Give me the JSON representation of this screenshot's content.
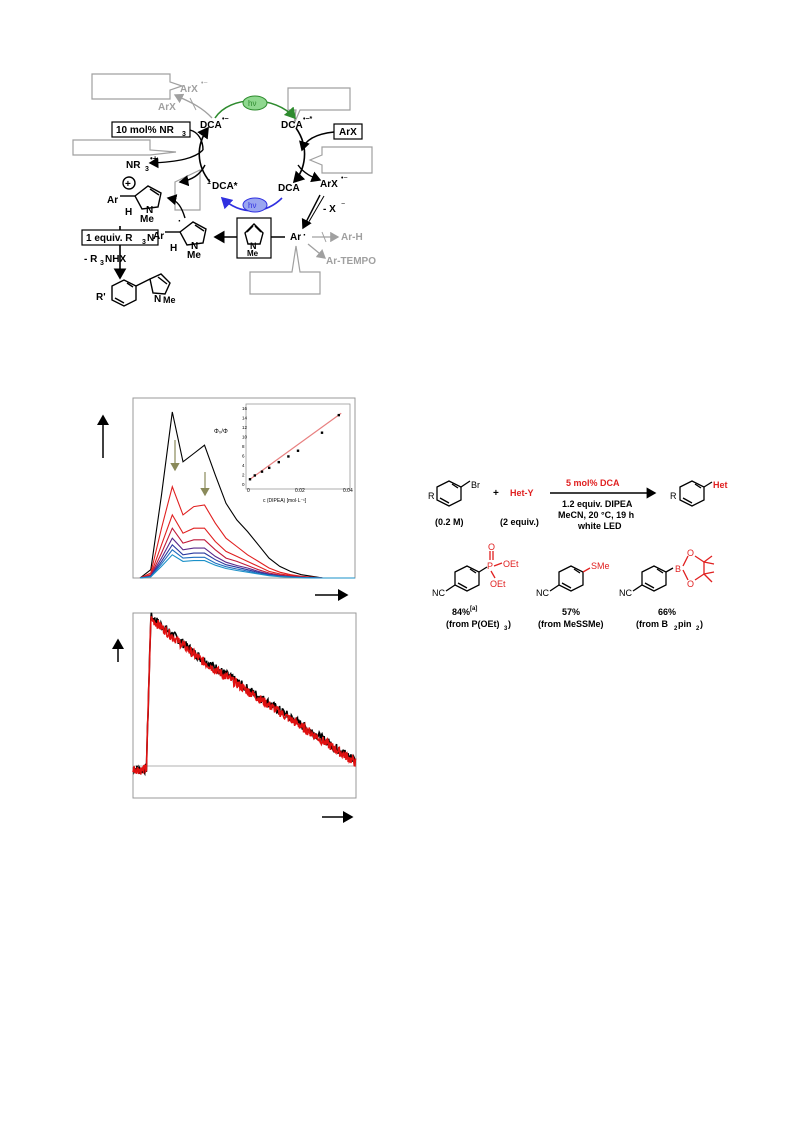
{
  "scheme_cycle": {
    "dca_radical_anion_left": "DCA",
    "dca_radical_anion_excited": "DCA",
    "dca_singlet_excited": "DCA*",
    "dca_ground": "DCA",
    "hv_top": "hν",
    "hv_bottom": "hν",
    "singlet_prefix": "1",
    "aryl_halide_box": "ArX",
    "aryl_halide_radical_anion": "ArX",
    "halide_loss": "- X",
    "aryl_radical": "Ar",
    "aryl_h": "Ar-H",
    "aryl_tempo": "Ar-TEMPO",
    "back_arx_anion": "ArX",
    "back_arx": "ArX",
    "amine_catalyst_box": "10 mol% NR",
    "amine_radical_cation": "NR",
    "base_box": "1 equiv. R",
    "base_box_suffix": "N",
    "ammonium_salt": "- R",
    "ammonium_salt_suffix": "NHX",
    "intermediate_cation_ar": "Ar",
    "intermediate_cation_h": "H",
    "intermediate_cation_n": "N",
    "intermediate_cation_me": "Me",
    "intermediate_radical_ar": "Ar",
    "intermediate_radical_h": "H",
    "intermediate_radical_n": "N",
    "intermediate_radical_me": "Me",
    "pyrrole_n": "N",
    "pyrrole_me": "Me",
    "product_r": "R'",
    "product_n": "N",
    "product_me": "Me",
    "plus_charge": "+"
  },
  "fluorescence_chart": {
    "inset_ylabel": "Φ₀/Φ",
    "inset_xlabel": "c (DIPEA) [mol·L⁻¹]",
    "inset_xticks": [
      "0",
      "0.02",
      "0.04"
    ],
    "inset_yticks": [
      "0",
      "2",
      "4",
      "6",
      "8",
      "10",
      "12",
      "14",
      "16"
    ]
  },
  "chart_data": [
    {
      "type": "line",
      "title": "",
      "xlabel": "",
      "ylabel": "",
      "x": [
        0,
        5,
        10,
        15,
        20,
        25,
        30,
        35,
        40,
        45,
        50,
        55,
        60,
        65,
        70,
        75,
        80,
        85,
        90,
        95,
        100
      ],
      "series": [
        {
          "values": [
            0.0,
            0.05,
            0.5,
            1.0,
            0.7,
            0.75,
            0.8,
            0.62,
            0.45,
            0.35,
            0.28,
            0.2,
            0.12,
            0.07,
            0.04,
            0.02,
            0.01,
            0.0,
            0.0,
            0.0,
            0.0
          ]
        },
        {
          "values": [
            0.0,
            0.03,
            0.3,
            0.55,
            0.38,
            0.43,
            0.44,
            0.33,
            0.24,
            0.19,
            0.14,
            0.1,
            0.06,
            0.035,
            0.02,
            0.01,
            0.005,
            0.0,
            0.0,
            0.0,
            0.0
          ]
        },
        {
          "values": [
            0.0,
            0.02,
            0.2,
            0.38,
            0.27,
            0.3,
            0.3,
            0.22,
            0.16,
            0.13,
            0.1,
            0.07,
            0.04,
            0.025,
            0.015,
            0.008,
            0.004,
            0.0,
            0.0,
            0.0,
            0.0
          ]
        },
        {
          "values": [
            0.0,
            0.015,
            0.15,
            0.3,
            0.21,
            0.23,
            0.23,
            0.17,
            0.12,
            0.1,
            0.075,
            0.05,
            0.03,
            0.018,
            0.01,
            0.005,
            0.003,
            0.0,
            0.0,
            0.0,
            0.0
          ]
        },
        {
          "values": [
            0.0,
            0.012,
            0.12,
            0.24,
            0.17,
            0.18,
            0.18,
            0.13,
            0.095,
            0.075,
            0.06,
            0.04,
            0.024,
            0.014,
            0.008,
            0.004,
            0.002,
            0.0,
            0.0,
            0.0,
            0.0
          ]
        },
        {
          "values": [
            0.0,
            0.01,
            0.1,
            0.2,
            0.14,
            0.15,
            0.15,
            0.11,
            0.08,
            0.065,
            0.05,
            0.034,
            0.02,
            0.012,
            0.007,
            0.003,
            0.002,
            0.0,
            0.0,
            0.0,
            0.0
          ]
        },
        {
          "values": [
            0.0,
            0.008,
            0.085,
            0.17,
            0.12,
            0.125,
            0.125,
            0.09,
            0.068,
            0.054,
            0.042,
            0.028,
            0.017,
            0.01,
            0.006,
            0.003,
            0.001,
            0.0,
            0.0,
            0.0,
            0.0
          ]
        },
        {
          "values": [
            0.0,
            0.007,
            0.07,
            0.14,
            0.1,
            0.105,
            0.105,
            0.077,
            0.057,
            0.045,
            0.035,
            0.024,
            0.014,
            0.008,
            0.005,
            0.002,
            0.001,
            0.0,
            0.0,
            0.0,
            0.0
          ]
        }
      ],
      "colors": [
        "#000000",
        "#e02020",
        "#e02020",
        "#c01a3a",
        "#5a2a8a",
        "#2a3aa0",
        "#1f6fc0",
        "#1a90c8"
      ]
    },
    {
      "type": "scatter",
      "title": "",
      "xlabel": "c (DIPEA) [mol·L⁻¹]",
      "ylabel": "Φ₀/Φ",
      "x": [
        0.0,
        0.002,
        0.005,
        0.008,
        0.012,
        0.016,
        0.02,
        0.03,
        0.037
      ],
      "y": [
        1.0,
        1.8,
        2.6,
        3.4,
        4.6,
        5.8,
        7.0,
        10.8,
        14.5
      ],
      "xlim": [
        0,
        0.04
      ],
      "ylim": [
        0,
        16
      ]
    },
    {
      "type": "line",
      "title": "",
      "xlabel": "",
      "ylabel": "",
      "x": [
        0,
        4,
        6,
        8,
        10,
        20,
        30,
        40,
        50,
        60,
        70,
        80,
        90,
        100
      ],
      "series": [
        {
          "values": [
            0.16,
            0.15,
            0.16,
            0.98,
            0.96,
            0.86,
            0.76,
            0.68,
            0.6,
            0.52,
            0.44,
            0.36,
            0.28,
            0.2
          ]
        },
        {
          "values": [
            0.16,
            0.15,
            0.16,
            0.97,
            0.95,
            0.85,
            0.75,
            0.67,
            0.59,
            0.51,
            0.43,
            0.35,
            0.27,
            0.19
          ]
        }
      ],
      "colors": [
        "#000000",
        "#e01010"
      ]
    }
  ],
  "reaction": {
    "substrate_br": "Br",
    "substrate_r": "R",
    "plus": "+",
    "reagent": "Het-Y",
    "catalyst": "5 mol% DCA",
    "conditions_1": "1.2 equiv. DIPEA",
    "conditions_2": "MeCN, 20 °C, 19 h",
    "conditions_3": "white LED",
    "product_r": "R",
    "product_het": "Het",
    "substrate_conc": "(0.2 M)",
    "reagent_equiv": "(2 equiv.)"
  },
  "products": [
    {
      "yield": "84%",
      "note": "[a]",
      "source": "(from P(OEt)",
      "source_sub": "3",
      "source_end": ")",
      "p": "P",
      "o": "O",
      "oet1": "OEt",
      "oet2": "OEt",
      "nc": "NC"
    },
    {
      "yield": "57%",
      "source": "(from MeSSMe)",
      "group": "SMe",
      "nc": "NC"
    },
    {
      "yield": "66%",
      "source": "(from B",
      "source_sub1": "2",
      "source_mid": "pin",
      "source_sub2": "2",
      "source_end": ")",
      "b": "B",
      "o1": "O",
      "o2": "O",
      "nc": "NC"
    }
  ],
  "colors": {
    "red": "#e02020",
    "green": "#2e8b2e",
    "blue": "#3030e0",
    "gray": "#a0a0a0"
  }
}
